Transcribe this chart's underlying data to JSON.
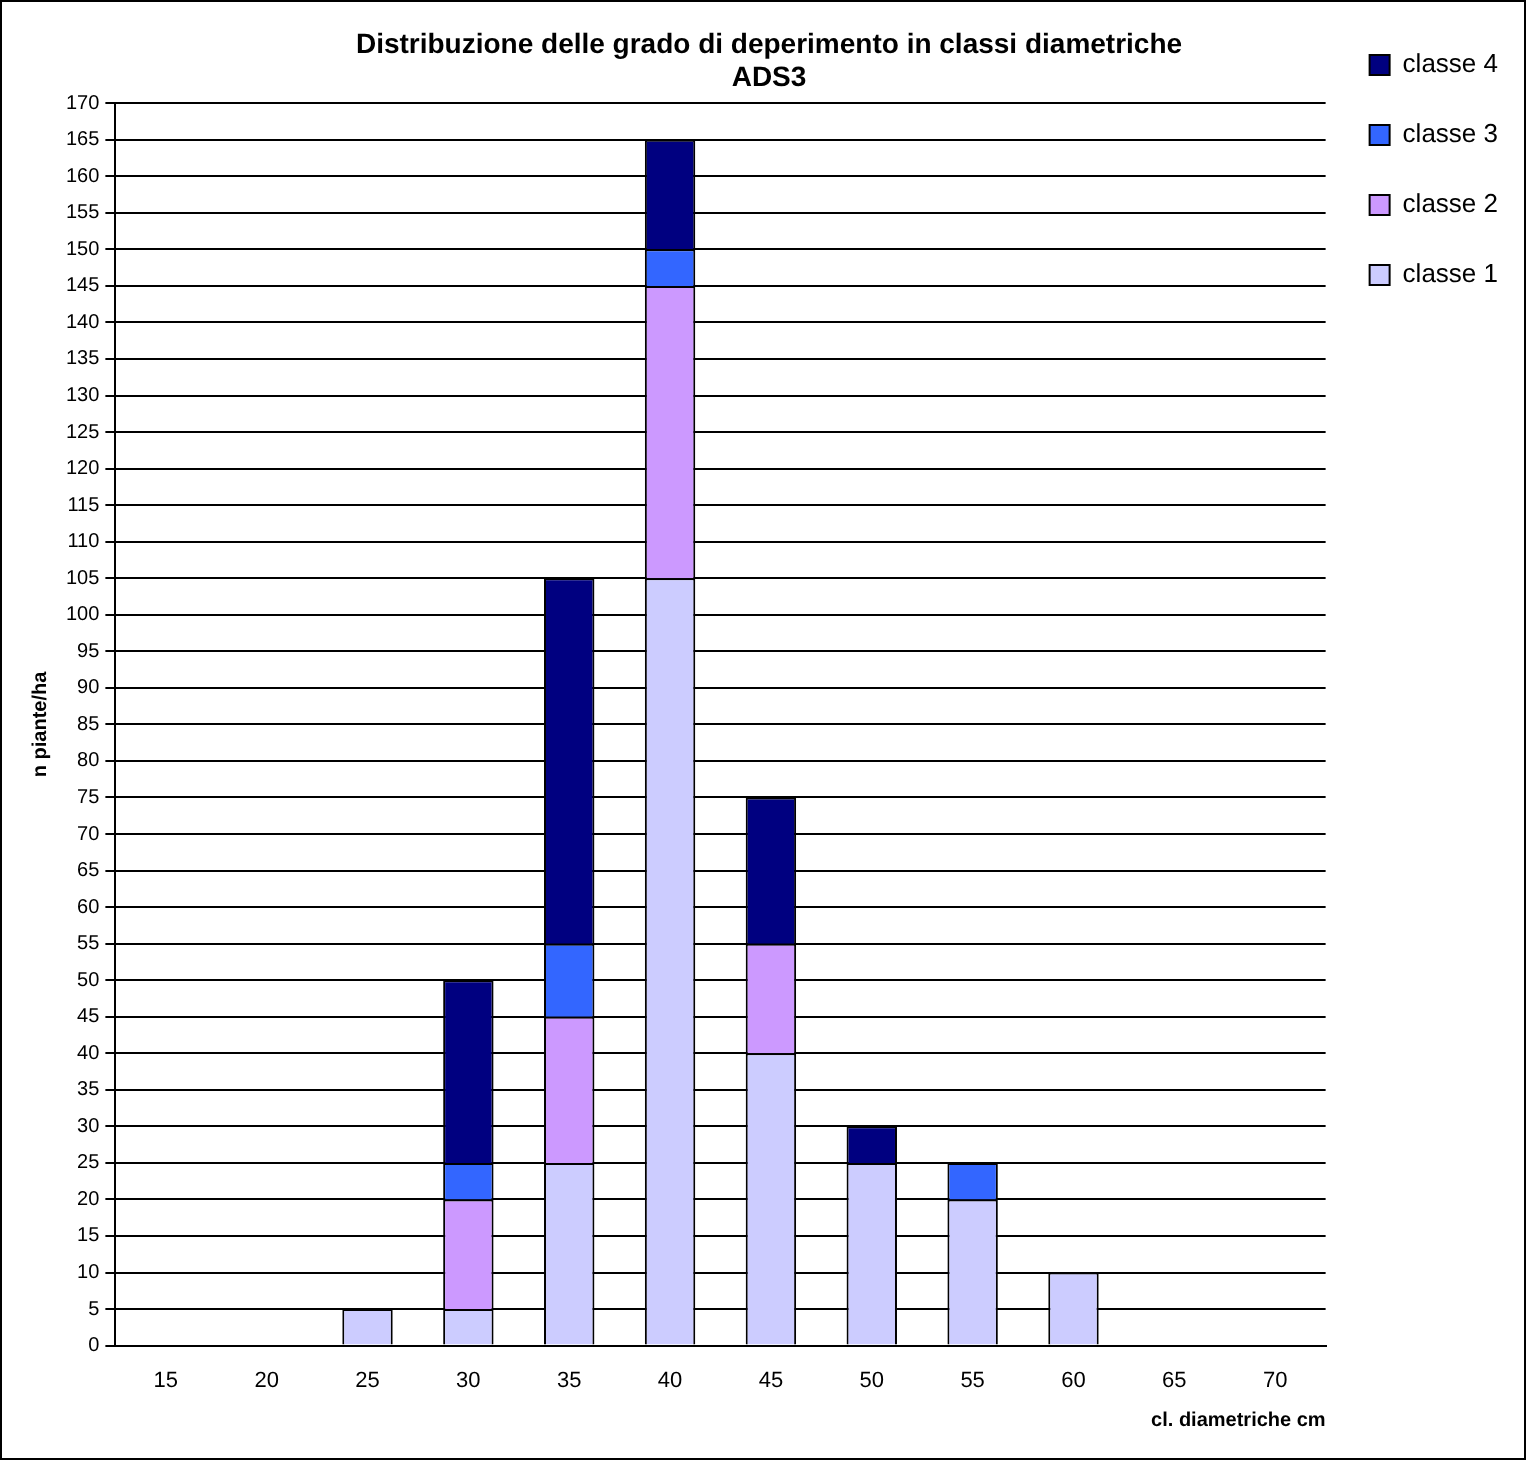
{
  "chart_data": {
    "type": "bar",
    "title": "Distribuzione delle grado di deperimento in classi diametriche\nADS3",
    "xlabel": "cl. diametriche cm",
    "ylabel": "n piante/ha",
    "categories": [
      "15",
      "20",
      "25",
      "30",
      "35",
      "40",
      "45",
      "50",
      "55",
      "60",
      "65",
      "70"
    ],
    "stacked": true,
    "legend": "top right",
    "grid": "y",
    "ylim": [
      0,
      170
    ],
    "yticks": [
      0,
      5,
      10,
      15,
      20,
      25,
      30,
      35,
      40,
      45,
      50,
      55,
      60,
      65,
      70,
      75,
      80,
      85,
      90,
      95,
      100,
      105,
      110,
      115,
      120,
      125,
      130,
      135,
      140,
      145,
      150,
      155,
      160,
      165,
      170
    ],
    "series": [
      {
        "name": "classe 1",
        "color": "#ccccff",
        "values": [
          0,
          0,
          5,
          5,
          25,
          105,
          40,
          25,
          20,
          10,
          0,
          0
        ]
      },
      {
        "name": "classe 2",
        "color": "#cc99ff",
        "values": [
          null,
          null,
          null,
          15,
          20,
          40,
          15,
          null,
          null,
          null,
          null,
          null
        ]
      },
      {
        "name": "classe 3",
        "color": "#3366ff",
        "values": [
          null,
          null,
          null,
          5,
          10,
          5,
          null,
          null,
          5,
          null,
          null,
          null
        ]
      },
      {
        "name": "classe 4",
        "color": "#000080",
        "values": [
          null,
          null,
          null,
          25,
          50,
          15,
          20,
          5,
          null,
          null,
          null,
          null
        ]
      }
    ]
  }
}
